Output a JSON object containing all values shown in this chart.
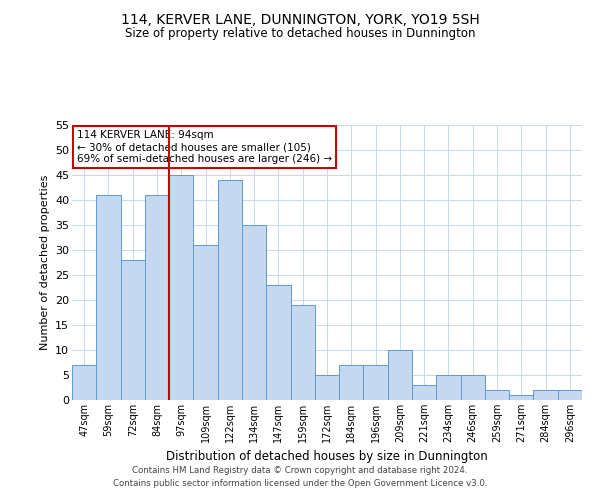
{
  "title": "114, KERVER LANE, DUNNINGTON, YORK, YO19 5SH",
  "subtitle": "Size of property relative to detached houses in Dunnington",
  "xlabel": "Distribution of detached houses by size in Dunnington",
  "ylabel": "Number of detached properties",
  "categories": [
    "47sqm",
    "59sqm",
    "72sqm",
    "84sqm",
    "97sqm",
    "109sqm",
    "122sqm",
    "134sqm",
    "147sqm",
    "159sqm",
    "172sqm",
    "184sqm",
    "196sqm",
    "209sqm",
    "221sqm",
    "234sqm",
    "246sqm",
    "259sqm",
    "271sqm",
    "284sqm",
    "296sqm"
  ],
  "values": [
    7,
    41,
    28,
    41,
    45,
    31,
    44,
    35,
    23,
    19,
    5,
    7,
    7,
    10,
    3,
    5,
    5,
    2,
    1,
    2,
    2
  ],
  "bar_color": "#c5d8f0",
  "bar_edge_color": "#5b9bd5",
  "vline_index": 4,
  "vline_color": "#cc0000",
  "ylim": [
    0,
    55
  ],
  "yticks": [
    0,
    5,
    10,
    15,
    20,
    25,
    30,
    35,
    40,
    45,
    50,
    55
  ],
  "annotation_text": "114 KERVER LANE: 94sqm\n← 30% of detached houses are smaller (105)\n69% of semi-detached houses are larger (246) →",
  "annotation_box_color": "#ffffff",
  "annotation_box_edge": "#cc0000",
  "footer_line1": "Contains HM Land Registry data © Crown copyright and database right 2024.",
  "footer_line2": "Contains public sector information licensed under the Open Government Licence v3.0.",
  "background_color": "#ffffff",
  "grid_color": "#c8d8ea"
}
